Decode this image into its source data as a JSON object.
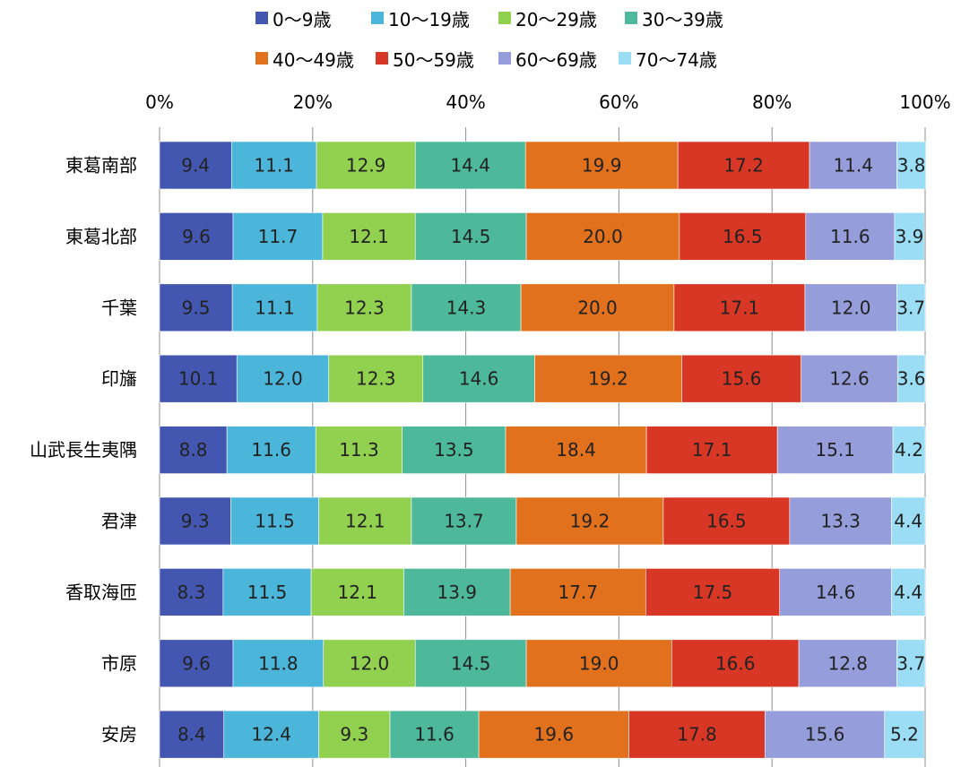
{
  "chart_data": {
    "type": "bar",
    "orientation": "horizontal",
    "stacked": "percent",
    "categories": [
      "東葛南部",
      "東葛北部",
      "千葉",
      "印旛",
      "山武長生夷隅",
      "君津",
      "香取海匝",
      "市原",
      "安房"
    ],
    "series": [
      {
        "name": "0〜9歳",
        "color": "#4457B0",
        "values": [
          9.4,
          9.6,
          9.5,
          10.1,
          8.8,
          9.3,
          8.3,
          9.6,
          8.4
        ]
      },
      {
        "name": "10〜19歳",
        "color": "#4BB6DA",
        "values": [
          11.1,
          11.7,
          11.1,
          12.0,
          11.6,
          11.5,
          11.5,
          11.8,
          12.4
        ]
      },
      {
        "name": "20〜29歳",
        "color": "#92D050",
        "values": [
          12.9,
          12.1,
          12.3,
          12.3,
          11.3,
          12.1,
          12.1,
          12.0,
          9.3
        ]
      },
      {
        "name": "30〜39歳",
        "color": "#4DB99A",
        "values": [
          14.4,
          14.5,
          14.3,
          14.6,
          13.5,
          13.7,
          13.9,
          14.5,
          11.6
        ]
      },
      {
        "name": "40〜49歳",
        "color": "#E2711D",
        "values": [
          19.9,
          20.0,
          20.0,
          19.2,
          18.4,
          19.2,
          17.7,
          19.0,
          19.6
        ]
      },
      {
        "name": "50〜59歳",
        "color": "#D93726",
        "values": [
          17.2,
          16.5,
          17.1,
          15.6,
          17.1,
          16.5,
          17.5,
          16.6,
          17.8
        ]
      },
      {
        "name": "60〜69歳",
        "color": "#959DDB",
        "values": [
          11.4,
          11.6,
          12.0,
          12.6,
          15.1,
          13.3,
          14.6,
          12.8,
          15.6
        ]
      },
      {
        "name": "70〜74歳",
        "color": "#9ADDF5",
        "values": [
          3.8,
          3.9,
          3.7,
          3.6,
          4.2,
          4.4,
          4.4,
          3.7,
          5.2
        ]
      }
    ],
    "xlim": [
      0,
      100
    ],
    "xticks": [
      "0%",
      "20%",
      "40%",
      "60%",
      "80%",
      "100%"
    ],
    "grid": true,
    "legend_position": "top"
  }
}
